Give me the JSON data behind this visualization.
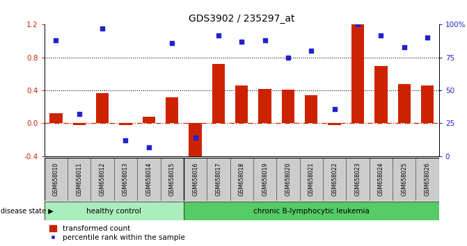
{
  "title": "GDS3902 / 235297_at",
  "samples": [
    "GSM658010",
    "GSM658011",
    "GSM658012",
    "GSM658013",
    "GSM658014",
    "GSM658015",
    "GSM658016",
    "GSM658017",
    "GSM658018",
    "GSM658019",
    "GSM658020",
    "GSM658021",
    "GSM658022",
    "GSM658023",
    "GSM658024",
    "GSM658025",
    "GSM658026"
  ],
  "bar_values": [
    0.12,
    -0.02,
    0.37,
    -0.02,
    0.08,
    0.32,
    -0.55,
    0.72,
    0.46,
    0.42,
    0.41,
    0.34,
    -0.02,
    1.2,
    0.7,
    0.48,
    0.46
  ],
  "dot_pct": [
    88,
    32,
    97,
    12,
    7,
    86,
    14,
    92,
    87,
    88,
    75,
    80,
    36,
    100,
    92,
    83,
    90
  ],
  "healthy_count": 6,
  "bar_color": "#cc2200",
  "dot_color": "#2222cc",
  "bar_width": 0.55,
  "ylim_left": [
    -0.4,
    1.2
  ],
  "yticks_left": [
    -0.4,
    0.0,
    0.4,
    0.8,
    1.2
  ],
  "yticks_right": [
    0,
    25,
    50,
    75,
    100
  ],
  "yticklabels_right": [
    "0",
    "25",
    "50",
    "75",
    "100%"
  ],
  "healthy_label": "healthy control",
  "leukemia_label": "chronic B-lymphocytic leukemia",
  "disease_state_label": "disease state",
  "legend_bar": "transformed count",
  "legend_dot": "percentile rank within the sample",
  "healthy_bg": "#aaeebb",
  "leukemia_bg": "#55cc66",
  "label_area_bg": "#cccccc",
  "figure_bg": "#ffffff"
}
